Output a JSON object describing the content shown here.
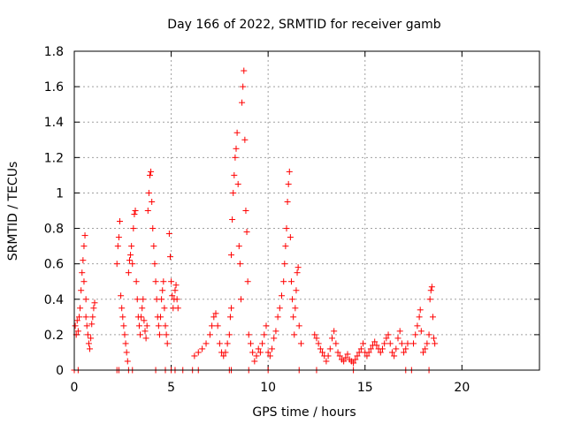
{
  "chart_data": {
    "type": "scatter",
    "title": "Day 166 of 2022, SRMTID for receiver gamb",
    "xlabel": "GPS time / hours",
    "ylabel": "SRMTID / TECUs",
    "xlim": [
      0,
      24
    ],
    "ylim": [
      0,
      1.8
    ],
    "x_ticks": [
      0,
      5,
      10,
      15,
      20
    ],
    "x_tick_labels": [
      "0",
      "5",
      "10",
      "15",
      "20"
    ],
    "y_ticks": [
      0,
      0.2,
      0.4,
      0.6,
      0.8,
      1.0,
      1.2,
      1.4,
      1.6,
      1.8
    ],
    "y_tick_labels": [
      "0",
      "0.2",
      "0.4",
      "0.6",
      "0.8",
      "1",
      "1.2",
      "1.4",
      "1.6",
      "1.8"
    ],
    "grid": true,
    "marker": "+",
    "color": "#ff0000",
    "series": [
      {
        "name": "SRMTID",
        "points": [
          [
            0.05,
            0.25
          ],
          [
            0.1,
            0.2
          ],
          [
            0.15,
            0.28
          ],
          [
            0.2,
            0.22
          ],
          [
            0.25,
            0.3
          ],
          [
            0.3,
            0.35
          ],
          [
            0.35,
            0.45
          ],
          [
            0.4,
            0.55
          ],
          [
            0.45,
            0.62
          ],
          [
            0.5,
            0.5
          ],
          [
            0.5,
            0.7
          ],
          [
            0.55,
            0.76
          ],
          [
            0.6,
            0.4
          ],
          [
            0.6,
            0.3
          ],
          [
            0.65,
            0.25
          ],
          [
            0.7,
            0.2
          ],
          [
            0.75,
            0.15
          ],
          [
            0.8,
            0.12
          ],
          [
            0.85,
            0.18
          ],
          [
            0.9,
            0.26
          ],
          [
            0.95,
            0.3
          ],
          [
            1.0,
            0.35
          ],
          [
            1.05,
            0.38
          ],
          [
            2.2,
            0.6
          ],
          [
            2.25,
            0.7
          ],
          [
            2.3,
            0.75
          ],
          [
            2.35,
            0.84
          ],
          [
            2.4,
            0.42
          ],
          [
            2.45,
            0.35
          ],
          [
            2.5,
            0.3
          ],
          [
            2.55,
            0.25
          ],
          [
            2.6,
            0.2
          ],
          [
            2.65,
            0.15
          ],
          [
            2.7,
            0.1
          ],
          [
            2.75,
            0.05
          ],
          [
            2.8,
            0.55
          ],
          [
            2.85,
            0.62
          ],
          [
            2.9,
            0.65
          ],
          [
            2.95,
            0.7
          ],
          [
            3.0,
            0.6
          ],
          [
            3.05,
            0.8
          ],
          [
            3.1,
            0.88
          ],
          [
            3.15,
            0.9
          ],
          [
            3.2,
            0.5
          ],
          [
            3.25,
            0.4
          ],
          [
            3.3,
            0.3
          ],
          [
            3.35,
            0.25
          ],
          [
            3.4,
            0.2
          ],
          [
            3.45,
            0.3
          ],
          [
            3.5,
            0.35
          ],
          [
            3.55,
            0.4
          ],
          [
            3.6,
            0.28
          ],
          [
            3.65,
            0.22
          ],
          [
            3.7,
            0.18
          ],
          [
            3.75,
            0.25
          ],
          [
            3.8,
            0.9
          ],
          [
            3.85,
            1.0
          ],
          [
            3.9,
            1.1
          ],
          [
            3.95,
            1.12
          ],
          [
            4.0,
            0.95
          ],
          [
            4.05,
            0.8
          ],
          [
            4.1,
            0.7
          ],
          [
            4.15,
            0.6
          ],
          [
            4.2,
            0.5
          ],
          [
            4.25,
            0.4
          ],
          [
            4.3,
            0.3
          ],
          [
            4.35,
            0.25
          ],
          [
            4.4,
            0.2
          ],
          [
            4.45,
            0.3
          ],
          [
            4.5,
            0.4
          ],
          [
            4.55,
            0.45
          ],
          [
            4.6,
            0.5
          ],
          [
            4.65,
            0.35
          ],
          [
            4.7,
            0.25
          ],
          [
            4.75,
            0.2
          ],
          [
            4.8,
            0.15
          ],
          [
            4.9,
            0.77
          ],
          [
            4.95,
            0.64
          ],
          [
            5.0,
            0.5
          ],
          [
            5.05,
            0.42
          ],
          [
            5.1,
            0.35
          ],
          [
            5.15,
            0.4
          ],
          [
            5.2,
            0.45
          ],
          [
            5.25,
            0.48
          ],
          [
            5.3,
            0.4
          ],
          [
            5.35,
            0.35
          ],
          [
            6.2,
            0.08
          ],
          [
            6.4,
            0.1
          ],
          [
            6.6,
            0.12
          ],
          [
            6.8,
            0.15
          ],
          [
            7.0,
            0.2
          ],
          [
            7.1,
            0.25
          ],
          [
            7.2,
            0.3
          ],
          [
            7.3,
            0.32
          ],
          [
            7.4,
            0.25
          ],
          [
            7.5,
            0.15
          ],
          [
            7.6,
            0.1
          ],
          [
            7.7,
            0.08
          ],
          [
            7.8,
            0.1
          ],
          [
            7.9,
            0.15
          ],
          [
            8.0,
            0.2
          ],
          [
            8.05,
            0.3
          ],
          [
            8.1,
            0.35
          ],
          [
            8.1,
            0.65
          ],
          [
            8.15,
            0.85
          ],
          [
            8.2,
            1.0
          ],
          [
            8.25,
            1.1
          ],
          [
            8.3,
            1.2
          ],
          [
            8.35,
            1.25
          ],
          [
            8.4,
            1.34
          ],
          [
            8.45,
            1.05
          ],
          [
            8.5,
            0.7
          ],
          [
            8.55,
            0.6
          ],
          [
            8.6,
            0.4
          ],
          [
            8.65,
            1.51
          ],
          [
            8.7,
            1.6
          ],
          [
            8.75,
            1.69
          ],
          [
            8.8,
            1.3
          ],
          [
            8.85,
            0.9
          ],
          [
            8.9,
            0.78
          ],
          [
            8.95,
            0.5
          ],
          [
            9.0,
            0.2
          ],
          [
            9.1,
            0.15
          ],
          [
            9.2,
            0.1
          ],
          [
            9.3,
            0.05
          ],
          [
            9.4,
            0.08
          ],
          [
            9.5,
            0.12
          ],
          [
            9.6,
            0.1
          ],
          [
            9.7,
            0.15
          ],
          [
            9.8,
            0.2
          ],
          [
            9.9,
            0.25
          ],
          [
            10.0,
            0.1
          ],
          [
            10.1,
            0.08
          ],
          [
            10.2,
            0.12
          ],
          [
            10.3,
            0.18
          ],
          [
            10.4,
            0.22
          ],
          [
            10.5,
            0.3
          ],
          [
            10.6,
            0.35
          ],
          [
            10.7,
            0.42
          ],
          [
            10.8,
            0.5
          ],
          [
            10.85,
            0.6
          ],
          [
            10.9,
            0.7
          ],
          [
            10.95,
            0.8
          ],
          [
            11.0,
            0.95
          ],
          [
            11.05,
            1.05
          ],
          [
            11.1,
            1.12
          ],
          [
            11.15,
            0.75
          ],
          [
            11.2,
            0.5
          ],
          [
            11.25,
            0.4
          ],
          [
            11.3,
            0.3
          ],
          [
            11.35,
            0.2
          ],
          [
            11.4,
            0.35
          ],
          [
            11.45,
            0.45
          ],
          [
            11.5,
            0.55
          ],
          [
            11.55,
            0.58
          ],
          [
            11.6,
            0.25
          ],
          [
            11.7,
            0.15
          ],
          [
            12.4,
            0.2
          ],
          [
            12.5,
            0.18
          ],
          [
            12.6,
            0.15
          ],
          [
            12.7,
            0.12
          ],
          [
            12.8,
            0.1
          ],
          [
            12.9,
            0.08
          ],
          [
            13.0,
            0.05
          ],
          [
            13.1,
            0.08
          ],
          [
            13.2,
            0.12
          ],
          [
            13.3,
            0.18
          ],
          [
            13.4,
            0.22
          ],
          [
            13.5,
            0.15
          ],
          [
            13.6,
            0.1
          ],
          [
            13.7,
            0.08
          ],
          [
            13.8,
            0.06
          ],
          [
            13.9,
            0.05
          ],
          [
            14.0,
            0.07
          ],
          [
            14.1,
            0.09
          ],
          [
            14.2,
            0.06
          ],
          [
            14.3,
            0.05
          ],
          [
            14.4,
            0.04
          ],
          [
            14.5,
            0.06
          ],
          [
            14.6,
            0.08
          ],
          [
            14.7,
            0.1
          ],
          [
            14.8,
            0.12
          ],
          [
            14.9,
            0.15
          ],
          [
            15.0,
            0.1
          ],
          [
            15.1,
            0.08
          ],
          [
            15.2,
            0.1
          ],
          [
            15.3,
            0.12
          ],
          [
            15.4,
            0.14
          ],
          [
            15.5,
            0.16
          ],
          [
            15.6,
            0.14
          ],
          [
            15.7,
            0.12
          ],
          [
            15.8,
            0.1
          ],
          [
            15.9,
            0.12
          ],
          [
            16.0,
            0.15
          ],
          [
            16.1,
            0.18
          ],
          [
            16.2,
            0.2
          ],
          [
            16.3,
            0.15
          ],
          [
            16.4,
            0.1
          ],
          [
            16.5,
            0.08
          ],
          [
            16.6,
            0.12
          ],
          [
            16.7,
            0.18
          ],
          [
            16.8,
            0.22
          ],
          [
            16.9,
            0.15
          ],
          [
            17.0,
            0.1
          ],
          [
            17.1,
            0.12
          ],
          [
            17.2,
            0.15
          ],
          [
            17.5,
            0.15
          ],
          [
            17.6,
            0.2
          ],
          [
            17.7,
            0.25
          ],
          [
            17.8,
            0.3
          ],
          [
            17.85,
            0.34
          ],
          [
            17.9,
            0.22
          ],
          [
            18.0,
            0.1
          ],
          [
            18.1,
            0.12
          ],
          [
            18.2,
            0.15
          ],
          [
            18.3,
            0.2
          ],
          [
            18.35,
            0.4
          ],
          [
            18.4,
            0.45
          ],
          [
            18.45,
            0.47
          ],
          [
            18.5,
            0.3
          ],
          [
            18.55,
            0.18
          ],
          [
            18.6,
            0.15
          ],
          [
            0.0,
            0.0
          ],
          [
            0.2,
            0.0
          ],
          [
            2.2,
            0.0
          ],
          [
            2.3,
            0.0
          ],
          [
            2.8,
            0.0
          ],
          [
            3.0,
            0.0
          ],
          [
            4.2,
            0.0
          ],
          [
            4.7,
            0.0
          ],
          [
            5.0,
            0.0
          ],
          [
            5.2,
            0.0
          ],
          [
            5.6,
            0.0
          ],
          [
            6.1,
            0.0
          ],
          [
            6.4,
            0.0
          ],
          [
            8.0,
            0.0
          ],
          [
            8.1,
            0.0
          ],
          [
            9.0,
            0.0
          ],
          [
            10.0,
            0.0
          ],
          [
            11.6,
            0.0
          ],
          [
            12.5,
            0.0
          ],
          [
            14.4,
            0.0
          ],
          [
            17.1,
            0.0
          ],
          [
            17.4,
            0.0
          ],
          [
            18.3,
            0.0
          ]
        ]
      }
    ]
  }
}
